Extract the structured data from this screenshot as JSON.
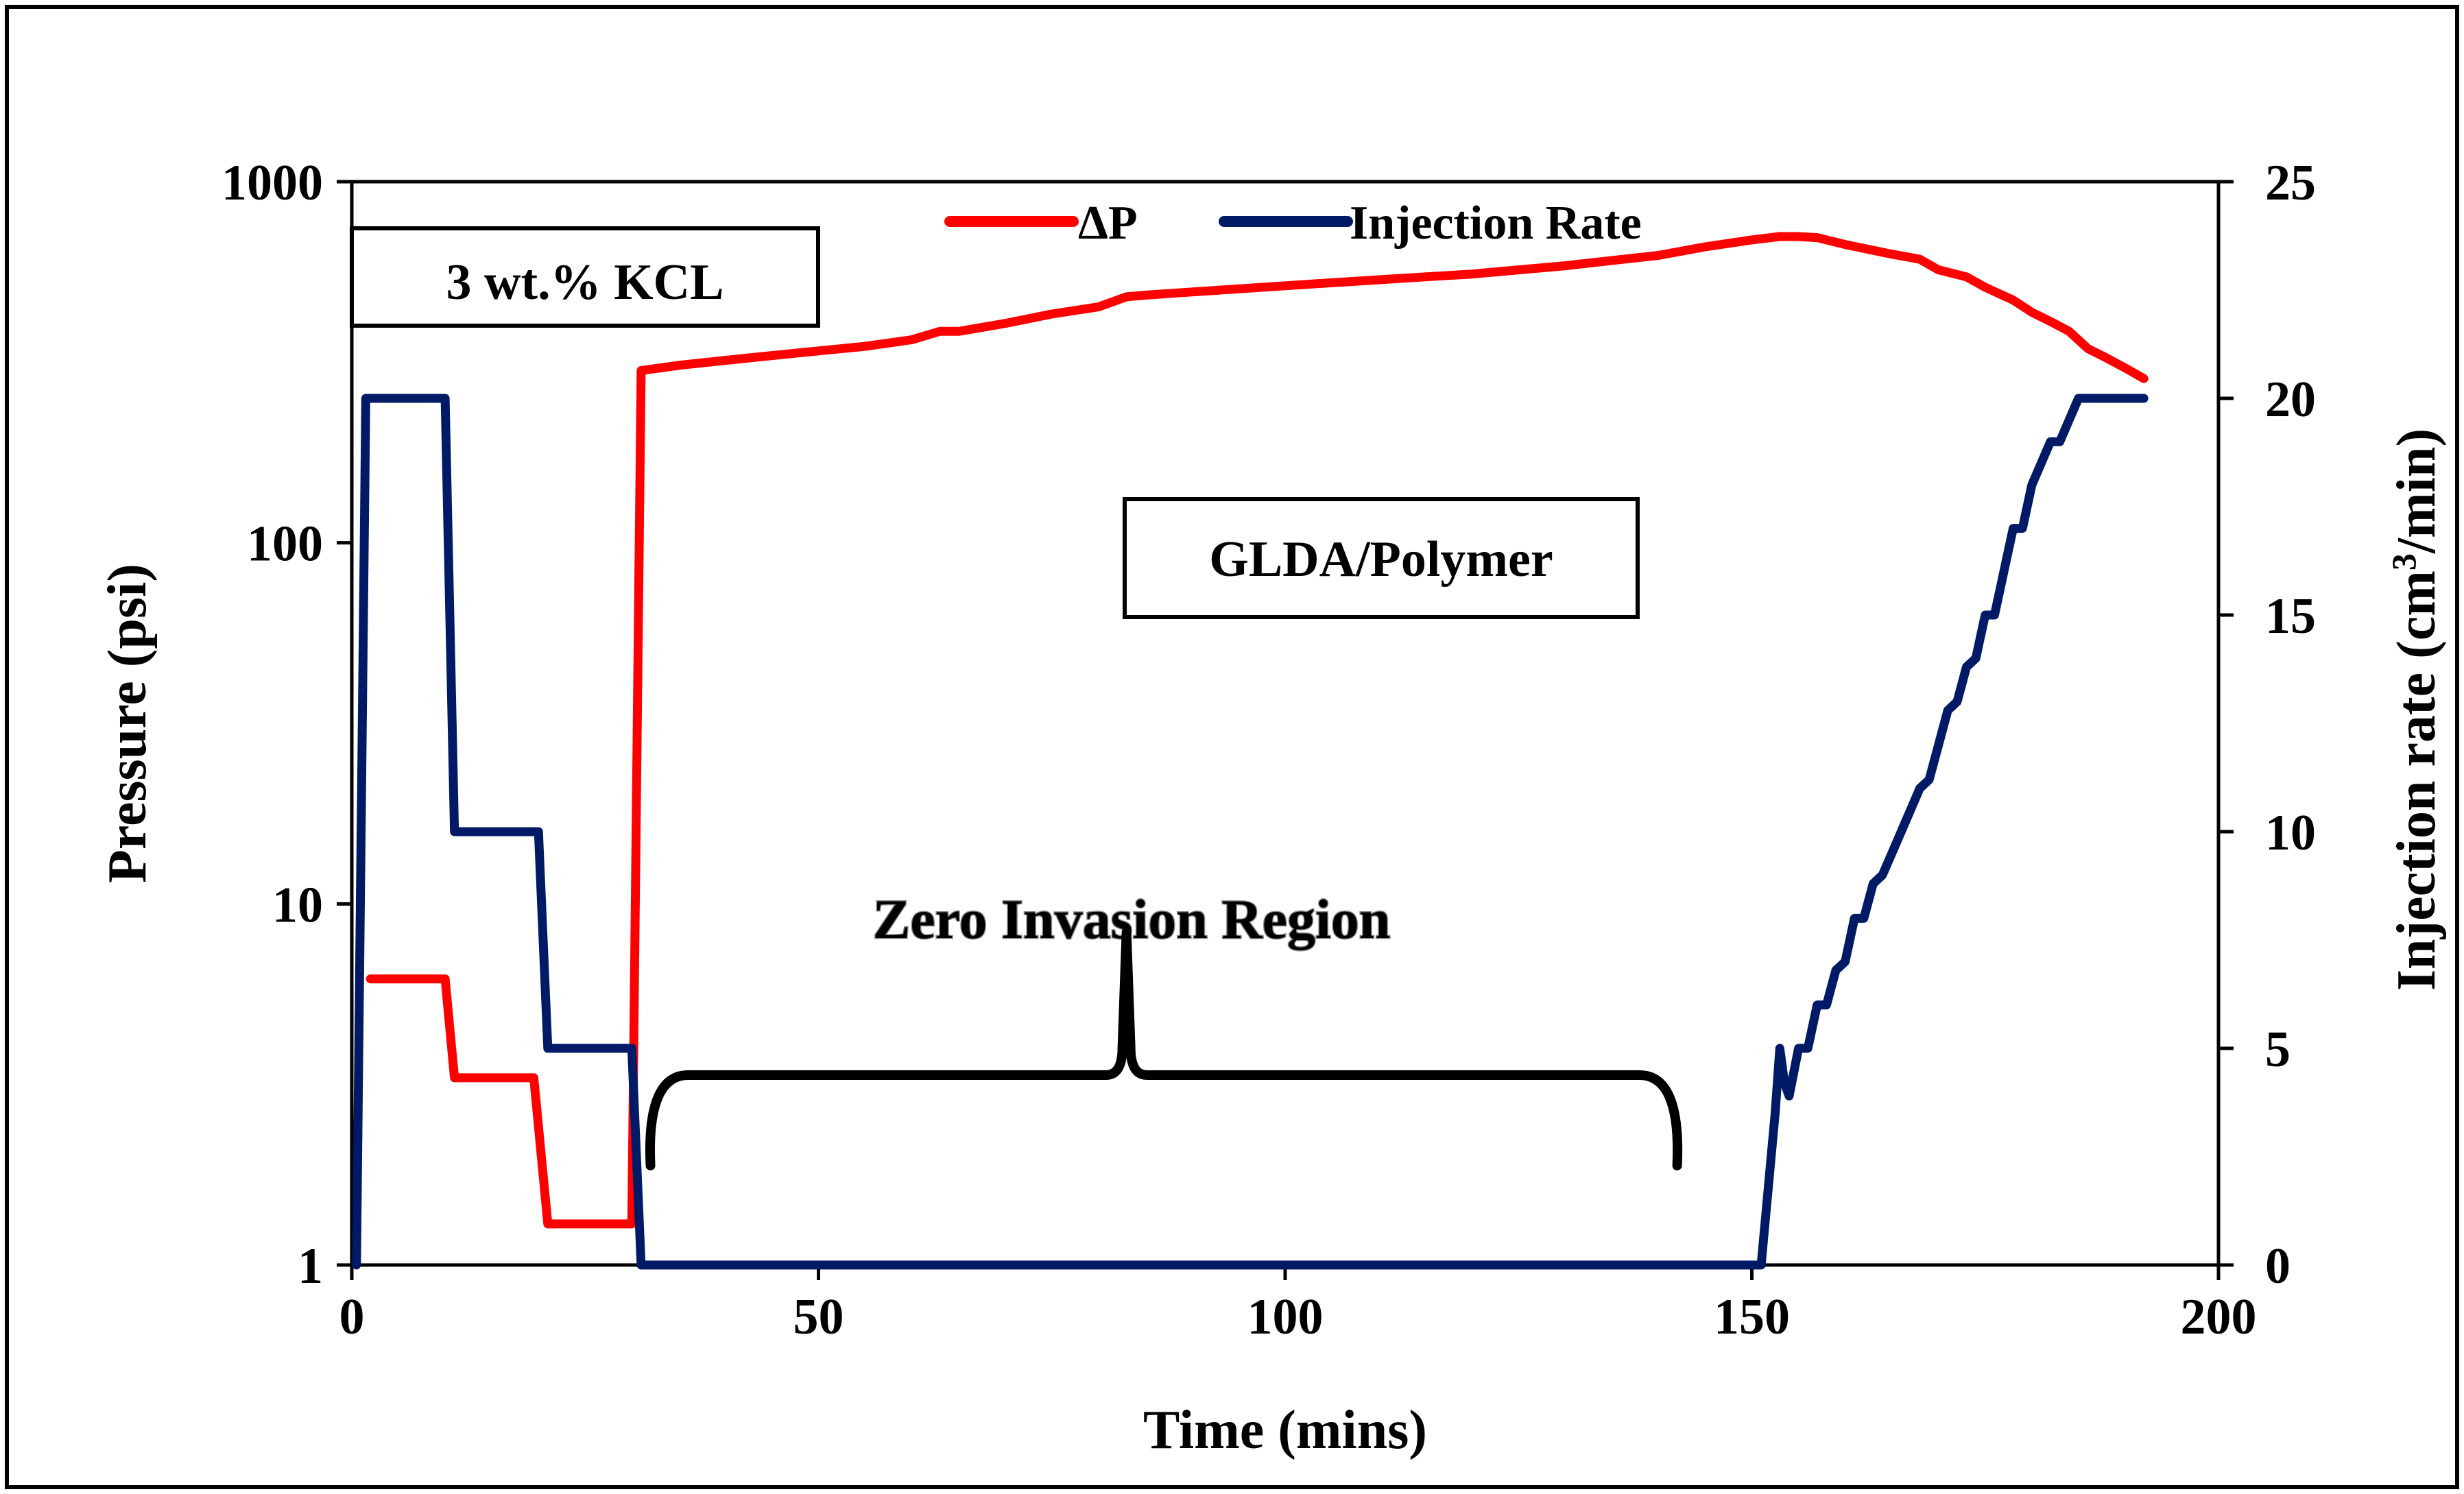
{
  "chart_data": {
    "type": "line",
    "title": "",
    "xlabel": "Time (mins)",
    "ylabel": "Pressure (psi)",
    "y2label": "Injection rate (cm3/min)",
    "y2label_main": "Injection rate (cm",
    "y2label_sup": "3",
    "y2label_tail": "/min)",
    "xlim": [
      0,
      200
    ],
    "ylim": [
      1,
      1000
    ],
    "yscale": "log",
    "y2lim": [
      0,
      25
    ],
    "x_ticks": [
      0,
      50,
      100,
      150,
      200
    ],
    "x_tick_labels": [
      "0",
      "50",
      "100",
      "150",
      "200"
    ],
    "y_ticks": [
      1,
      10,
      100,
      1000
    ],
    "y_tick_labels": [
      "1",
      "10",
      "100",
      "1000"
    ],
    "y2_ticks": [
      0,
      5,
      10,
      15,
      20,
      25
    ],
    "y2_tick_labels": [
      "0",
      "5",
      "10",
      "15",
      "20",
      "25"
    ],
    "legend": [
      "ΔP",
      "Injection Rate"
    ],
    "legend_position": "top-center",
    "series": [
      {
        "name": "ΔP",
        "axis": "left",
        "color": "#ff0000",
        "x": [
          2,
          10,
          11,
          19.5,
          21,
          30,
          31,
          35,
          40,
          45,
          50,
          55,
          60,
          63,
          65,
          70,
          75,
          80,
          83,
          85,
          90,
          95,
          100,
          105,
          110,
          115,
          120,
          125,
          130,
          135,
          140,
          145,
          150,
          153,
          155,
          157,
          160,
          165,
          168,
          170,
          173,
          175,
          178,
          180,
          182,
          184,
          186,
          188,
          190,
          192
        ],
        "y": [
          6.2,
          6.2,
          3.3,
          3.3,
          1.3,
          1.3,
          300,
          310,
          320,
          330,
          340,
          350,
          365,
          385,
          385,
          405,
          430,
          450,
          480,
          485,
          495,
          505,
          515,
          525,
          535,
          545,
          555,
          570,
          585,
          605,
          625,
          660,
          690,
          705,
          705,
          700,
          670,
          630,
          610,
          570,
          545,
          510,
          470,
          435,
          410,
          385,
          345,
          325,
          305,
          285
        ]
      },
      {
        "name": "Injection Rate",
        "axis": "right",
        "color": "#001a66",
        "x": [
          0.5,
          1.5,
          10,
          11,
          20,
          21,
          30,
          31,
          150,
          151,
          152.5,
          153,
          153.5,
          154,
          155,
          156,
          157,
          158,
          159,
          160,
          161,
          162,
          163,
          164,
          165,
          166,
          167,
          168,
          169,
          170,
          171,
          172,
          173,
          174,
          175,
          176,
          177,
          178,
          179,
          180,
          181,
          182,
          183,
          184,
          185,
          186,
          187,
          188,
          189,
          190,
          192
        ],
        "y": [
          0,
          20,
          20,
          10,
          10,
          5,
          5,
          0,
          0,
          0,
          3.5,
          5,
          4.2,
          3.9,
          5,
          5,
          6,
          6,
          6.8,
          7,
          8,
          8,
          8.8,
          9,
          9.5,
          10,
          10.5,
          11,
          11.2,
          12,
          12.8,
          13,
          13.8,
          14,
          15,
          15,
          16,
          17,
          17,
          18,
          18.5,
          19,
          19,
          19.5,
          20,
          20,
          20,
          20,
          20,
          20,
          20
        ]
      }
    ],
    "annotations": [
      {
        "name": "kcl-label",
        "text": "3 wt.% KCL"
      },
      {
        "name": "gldl-label",
        "text": "GLDA/Polymer"
      },
      {
        "name": "zero-invasion-label",
        "text": "Zero Invasion Region",
        "x_start": 32,
        "x_end": 142,
        "x_mid": 83
      }
    ]
  },
  "colors": {
    "dp": "#ff0000",
    "injection": "#001a66",
    "axis": "#000000",
    "background": "#ffffff"
  }
}
